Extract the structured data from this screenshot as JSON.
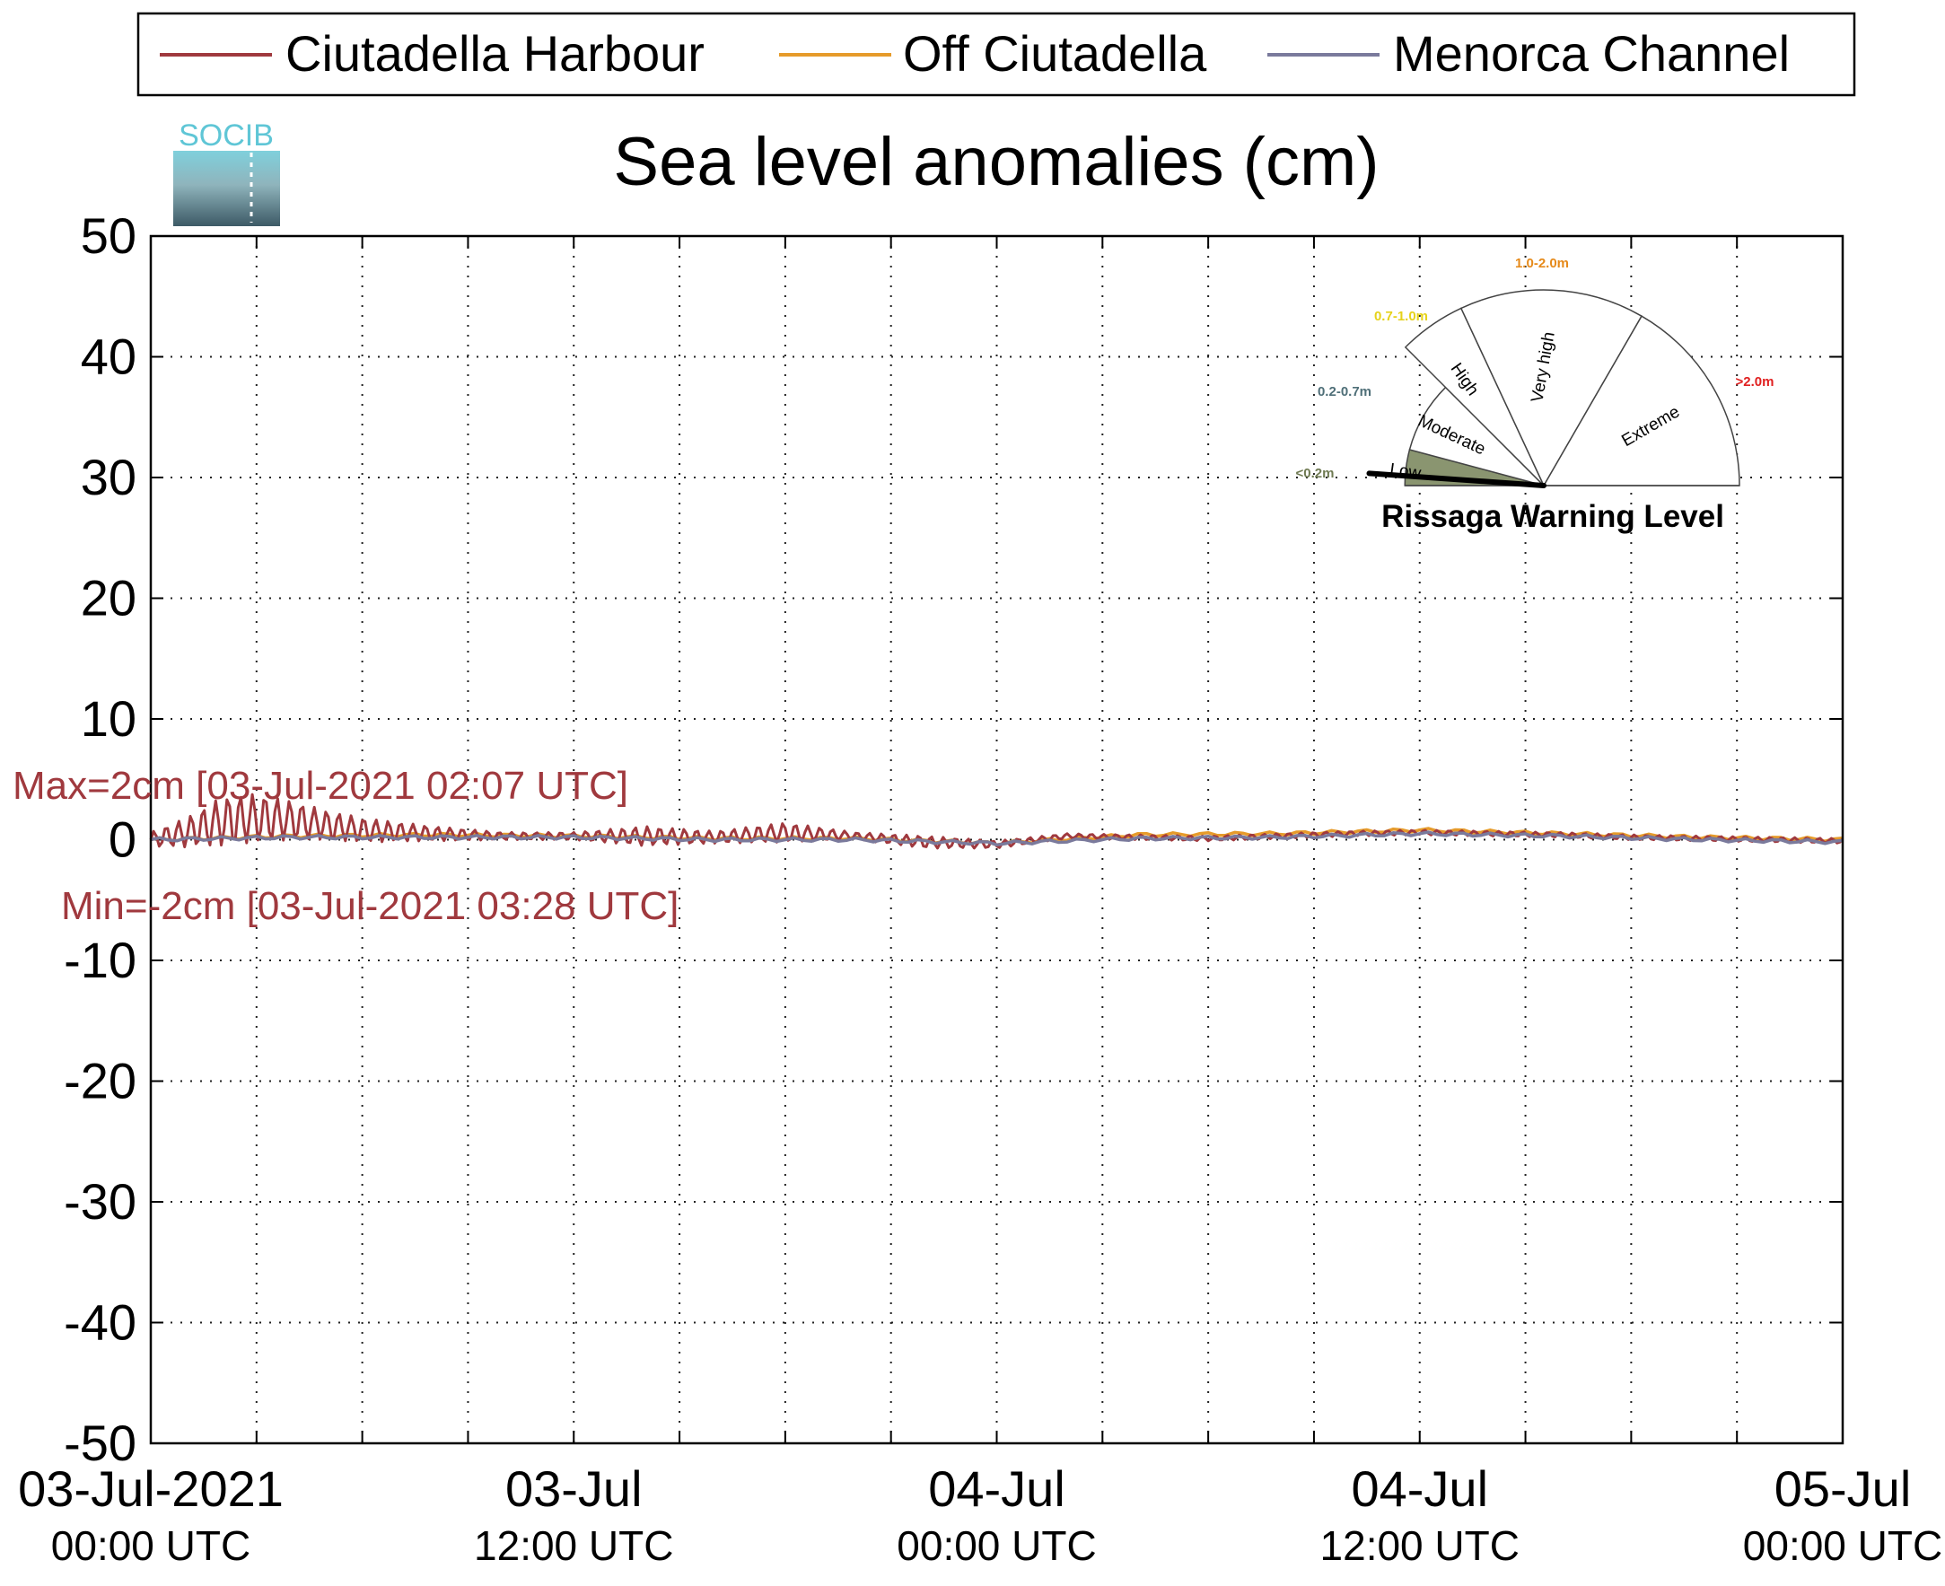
{
  "chart_data": {
    "type": "line",
    "title": "Sea level anomalies (cm)",
    "ylim": [
      -50,
      50
    ],
    "yticks": [
      "50",
      "40",
      "30",
      "20",
      "10",
      "0",
      "-10",
      "-20",
      "-30",
      "-40",
      "-50"
    ],
    "xlim": [
      "2021-07-03 00:00",
      "2021-07-05 00:00"
    ],
    "xticks": [
      {
        "date": "03-Jul-2021",
        "time": "00:00 UTC"
      },
      {
        "date": "03-Jul",
        "time": "12:00 UTC"
      },
      {
        "date": "04-Jul",
        "time": "00:00 UTC"
      },
      {
        "date": "04-Jul",
        "time": "12:00 UTC"
      },
      {
        "date": "05-Jul",
        "time": "00:00 UTC"
      }
    ],
    "grid": true,
    "legend_position": "top",
    "series": [
      {
        "name": "Ciutadella Harbour",
        "color": "#a0393e",
        "x_hours": [
          0,
          1,
          2,
          3,
          4,
          5,
          6,
          8,
          10,
          12,
          14,
          16,
          18,
          20,
          22,
          24,
          26,
          28,
          30,
          32,
          34,
          36,
          38,
          40,
          42,
          44,
          46,
          48
        ],
        "y": [
          0,
          0.6,
          1.5,
          1.8,
          1.6,
          1.2,
          0.8,
          0.5,
          0.3,
          0.3,
          0.3,
          0.2,
          0.6,
          0.3,
          -0.2,
          -0.4,
          0.3,
          0.2,
          0.1,
          0.3,
          0.5,
          0.6,
          0.5,
          0.4,
          0.2,
          0.1,
          0.0,
          -0.1
        ],
        "oscillation_amplitude": [
          0.6,
          1.2,
          2.0,
          2.0,
          1.6,
          1.2,
          1.0,
          0.6,
          0.3,
          0.3,
          0.8,
          0.5,
          0.8,
          0.3,
          0.5,
          0.3,
          0.2,
          0.2,
          0.2,
          0.2,
          0.2,
          0.2,
          0.2,
          0.2,
          0.2,
          0.2,
          0.2,
          0.2
        ]
      },
      {
        "name": "Off Ciutadella",
        "color": "#e69b2b",
        "x_hours": [
          0,
          4,
          8,
          12,
          16,
          20,
          24,
          28,
          32,
          36,
          40,
          44,
          48
        ],
        "y": [
          0,
          0.3,
          0.4,
          0.3,
          0.1,
          0.1,
          -0.3,
          0.4,
          0.5,
          0.8,
          0.5,
          0.2,
          0.0
        ]
      },
      {
        "name": "Menorca Channel",
        "color": "#7a7a9c",
        "x_hours": [
          0,
          4,
          8,
          12,
          16,
          20,
          24,
          28,
          32,
          36,
          40,
          44,
          48
        ],
        "y": [
          0,
          0.2,
          0.2,
          0.2,
          0.0,
          0.0,
          -0.3,
          0.1,
          0.2,
          0.5,
          0.3,
          0.0,
          -0.2
        ]
      }
    ],
    "annotations": {
      "max": "Max=2cm [03-Jul-2021 02:07 UTC]",
      "min": "Min=-2cm [03-Jul-2021 03:28 UTC]",
      "annotation_color": "#a0393e"
    },
    "warning_gauge": {
      "title": "Rissaga Warning Level",
      "sectors": [
        {
          "name": "Low",
          "range": "<0.2m",
          "range_color": "#6f7a52",
          "fill": "#8a9570"
        },
        {
          "name": "Moderate",
          "range": "0.2-0.7m",
          "range_color": "#4f6f78",
          "fill": "#ffffff"
        },
        {
          "name": "High",
          "range": "0.7-1.0m",
          "range_color": "#e6d21a",
          "fill": "#ffffff"
        },
        {
          "name": "Very high",
          "range": "1.0-2.0m",
          "range_color": "#e68a1a",
          "fill": "#ffffff"
        },
        {
          "name": "Extreme",
          "range": ">2.0m",
          "range_color": "#e02020",
          "fill": "#ffffff"
        }
      ],
      "current_level": "Low"
    },
    "logo": {
      "text": "SOCIB"
    }
  }
}
